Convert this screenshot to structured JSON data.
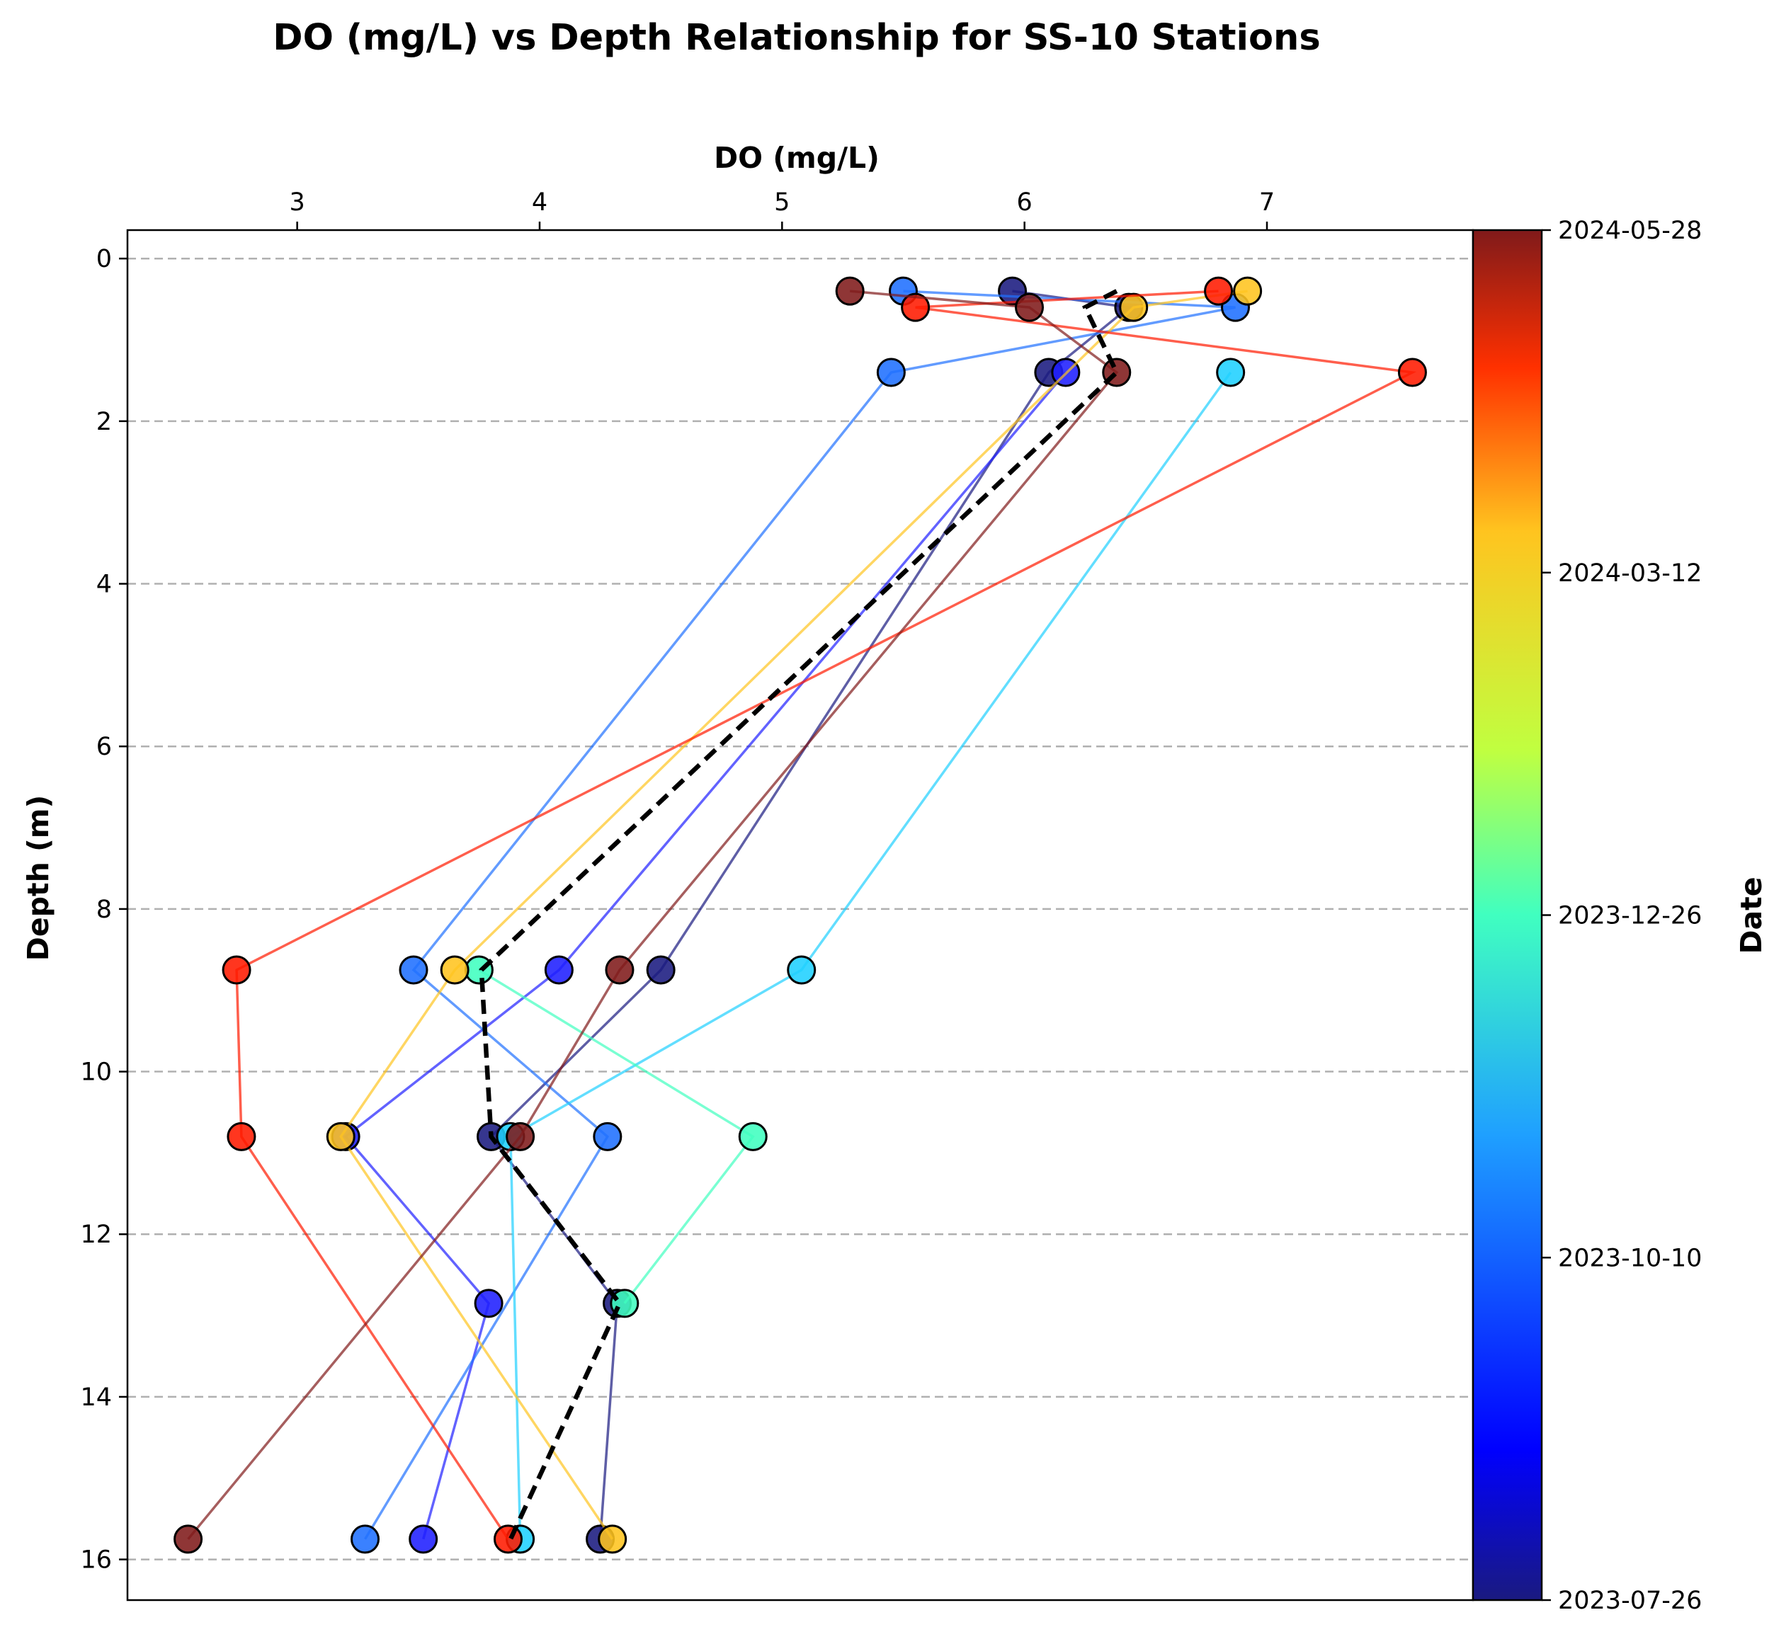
{
  "chart_data": {
    "type": "line",
    "title": "DO (mg/L) vs Depth Relationship for SS-10 Stations",
    "xlabel": "DO (mg/L)",
    "ylabel": "Depth (m)",
    "xlim": [
      2.3,
      7.85
    ],
    "ylim": [
      16.5,
      -0.35
    ],
    "x_axis_position": "top",
    "y_inverted": true,
    "xticks": [
      3,
      4,
      5,
      6,
      7
    ],
    "yticks": [
      0,
      2,
      4,
      6,
      8,
      10,
      12,
      14,
      16
    ],
    "grid": "horizontal-dashed",
    "colorbar": {
      "label": "Date",
      "colormap": "jet",
      "ticks": [
        "2024-05-28",
        "2024-03-12",
        "2023-12-26",
        "2023-10-10",
        "2023-07-26"
      ]
    },
    "series": [
      {
        "date_fraction": 0.02,
        "color": "#1a1a80",
        "points": [
          [
            5.95,
            0.4
          ],
          [
            6.43,
            0.6
          ],
          [
            6.1,
            1.4
          ],
          [
            4.5,
            8.75
          ],
          [
            3.8,
            10.8
          ],
          [
            4.32,
            12.85
          ],
          [
            4.25,
            15.75
          ]
        ]
      },
      {
        "date_fraction": 0.12,
        "color": "#1f1fff",
        "points": [
          [
            6.17,
            1.4
          ],
          [
            4.08,
            8.75
          ],
          [
            3.2,
            10.8
          ],
          [
            3.79,
            12.85
          ],
          [
            3.52,
            15.75
          ]
        ]
      },
      {
        "date_fraction": 0.28,
        "color": "#1f70ff",
        "points": [
          [
            5.5,
            0.4
          ],
          [
            6.87,
            0.6
          ],
          [
            5.45,
            1.4
          ],
          [
            3.48,
            8.75
          ],
          [
            4.28,
            10.8
          ],
          [
            3.28,
            15.75
          ]
        ]
      },
      {
        "date_fraction": 0.4,
        "color": "#1fd0ff",
        "points": [
          [
            6.85,
            1.4
          ],
          [
            5.08,
            8.75
          ],
          [
            3.88,
            10.8
          ],
          [
            3.92,
            15.75
          ]
        ]
      },
      {
        "date_fraction": 0.5,
        "color": "#40ffbf",
        "points": [
          [
            3.75,
            8.75
          ],
          [
            4.88,
            10.8
          ],
          [
            4.35,
            12.85
          ]
        ]
      },
      {
        "date_fraction": 0.78,
        "color": "#ffc41f",
        "points": [
          [
            6.92,
            0.4
          ],
          [
            6.45,
            0.6
          ],
          [
            3.65,
            8.75
          ],
          [
            3.18,
            10.8
          ],
          [
            4.3,
            15.75
          ]
        ]
      },
      {
        "date_fraction": 0.92,
        "color": "#ff1a00",
        "points": [
          [
            6.8,
            0.4
          ],
          [
            5.55,
            0.6
          ],
          [
            7.6,
            1.4
          ],
          [
            2.75,
            8.75
          ],
          [
            2.77,
            10.8
          ],
          [
            3.87,
            15.75
          ]
        ]
      },
      {
        "date_fraction": 1.0,
        "color": "#801a1a",
        "points": [
          [
            5.28,
            0.4
          ],
          [
            6.02,
            0.6
          ],
          [
            6.38,
            1.4
          ],
          [
            4.33,
            8.75
          ],
          [
            3.92,
            10.8
          ],
          [
            2.55,
            15.75
          ]
        ]
      }
    ],
    "mean_profile": {
      "style": "black-dashed",
      "points": [
        [
          6.38,
          0.4
        ],
        [
          6.25,
          0.6
        ],
        [
          6.38,
          1.4
        ],
        [
          3.76,
          8.75
        ],
        [
          3.8,
          10.8
        ],
        [
          4.33,
          12.85
        ],
        [
          3.88,
          15.75
        ]
      ]
    }
  }
}
